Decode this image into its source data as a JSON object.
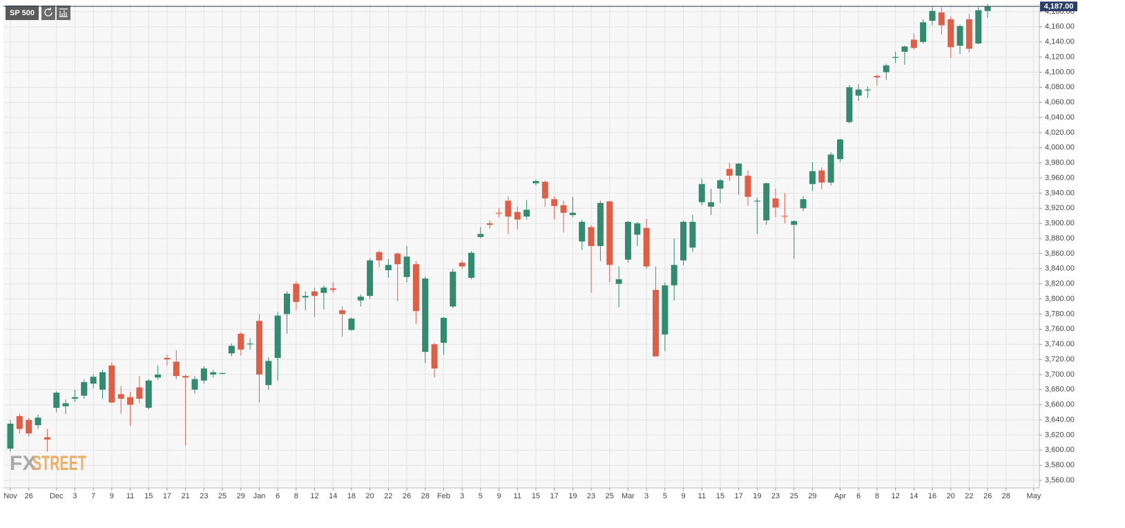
{
  "chart_data": {
    "type": "candlestick",
    "symbol": "SP 500",
    "watermark": [
      "FX",
      "STREET"
    ],
    "last_price": {
      "value": 4187,
      "label": "4,187.00"
    },
    "up_color": "#338a6e",
    "down_color": "#dd5f48",
    "grid": true,
    "categories": [
      "Nov",
      null,
      "26",
      null,
      null,
      "Dec",
      null,
      "3",
      null,
      "7",
      null,
      "9",
      null,
      "11",
      null,
      "15",
      null,
      "17",
      null,
      "21",
      null,
      "23",
      null,
      "25",
      null,
      "29",
      null,
      "Jan",
      null,
      "6",
      null,
      "8",
      null,
      "12",
      null,
      "14",
      null,
      "18",
      null,
      "20",
      null,
      "22",
      null,
      "26",
      null,
      "28",
      null,
      "Feb",
      null,
      "3",
      null,
      "5",
      null,
      "9",
      null,
      "11",
      null,
      "15",
      null,
      "17",
      null,
      "19",
      null,
      "23",
      null,
      "25",
      null,
      "Mar",
      null,
      "3",
      null,
      "5",
      null,
      "9",
      null,
      "11",
      null,
      "15",
      null,
      "17",
      null,
      "19",
      null,
      "23",
      null,
      "25",
      null,
      "29",
      null,
      null,
      "Apr",
      null,
      "6",
      null,
      "8",
      null,
      "12",
      null,
      "14",
      null,
      "16",
      null,
      "20",
      null,
      "22",
      null,
      "26",
      null,
      "28",
      null,
      null,
      "May"
    ],
    "open": [
      3602,
      3645,
      3640,
      3633,
      3617,
      3656,
      3658,
      3668,
      3672,
      3688,
      3680,
      3712,
      3674,
      3670,
      3683,
      3656,
      3696,
      3722,
      3717,
      3698,
      3680,
      3692,
      3700,
      3701,
      3728,
      3754,
      3740,
      3771,
      3686,
      3722,
      3780,
      3820,
      3802,
      3810,
      3808,
      3814,
      3785,
      3759,
      3798,
      3804,
      3862,
      3838,
      3860,
      3829,
      3846,
      3730,
      3740,
      3742,
      3790,
      3848,
      3828,
      3882,
      3900,
      3914,
      3930,
      3915,
      3909,
      3953,
      3955,
      3932,
      3924,
      3911,
      3876,
      3895,
      3870,
      3929,
      3820,
      3852,
      3885,
      3894,
      3812,
      3753,
      3818,
      3851,
      3868,
      3928,
      3922,
      3946,
      3972,
      3963,
      3963,
      3929,
      3904,
      3933,
      3910,
      3898,
      3920,
      3952,
      3970,
      3954,
      3985,
      4034,
      4069,
      4076,
      4095,
      4100,
      4120,
      4127,
      4143,
      4140,
      4168,
      4179,
      4170,
      4135,
      4170,
      4138,
      4181,
      null,
      null,
      null,
      null,
      null
    ],
    "high": [
      3640,
      3648,
      3643,
      3647,
      3628,
      3678,
      3667,
      3680,
      3694,
      3700,
      3706,
      3716,
      3685,
      3677,
      3698,
      3694,
      3712,
      3726,
      3732,
      3700,
      3698,
      3711,
      3706,
      3702,
      3741,
      3756,
      3748,
      3780,
      3723,
      3783,
      3810,
      3823,
      3810,
      3815,
      3818,
      3822,
      3790,
      3776,
      3806,
      3854,
      3864,
      3853,
      3862,
      3870,
      3850,
      3830,
      3742,
      3776,
      3840,
      3851,
      3863,
      3895,
      3904,
      3920,
      3936,
      3922,
      3931,
      3958,
      3957,
      3936,
      3930,
      3935,
      3905,
      3898,
      3930,
      3930,
      3843,
      3903,
      3902,
      3906,
      3843,
      3822,
      3880,
      3904,
      3911,
      3959,
      3946,
      3959,
      3980,
      3980,
      3970,
      3934,
      3954,
      3946,
      3940,
      3904,
      3936,
      3981,
      3974,
      3994,
      4012,
      4083,
      4084,
      4081,
      4097,
      4111,
      4127,
      4135,
      4151,
      4170,
      4186,
      4186,
      4174,
      4163,
      4177,
      4186,
      4190,
      null,
      null,
      null,
      null,
      null
    ],
    "low": [
      3598,
      3622,
      3618,
      3628,
      3598,
      3650,
      3648,
      3664,
      3668,
      3682,
      3668,
      3662,
      3648,
      3632,
      3662,
      3654,
      3693,
      3712,
      3694,
      3606,
      3675,
      3688,
      3696,
      3700,
      3724,
      3725,
      3733,
      3663,
      3680,
      3692,
      3754,
      3785,
      3785,
      3776,
      3786,
      3808,
      3750,
      3758,
      3790,
      3800,
      3842,
      3828,
      3797,
      3822,
      3767,
      3715,
      3696,
      3726,
      3788,
      3840,
      3826,
      3880,
      3893,
      3908,
      3886,
      3892,
      3905,
      3950,
      3922,
      3905,
      3888,
      3908,
      3865,
      3808,
      3850,
      3822,
      3789,
      3848,
      3870,
      3840,
      3724,
      3731,
      3798,
      3845,
      3862,
      3924,
      3911,
      3927,
      3956,
      3938,
      3923,
      3886,
      3898,
      3908,
      3900,
      3853,
      3916,
      3943,
      3945,
      3950,
      3981,
      4032,
      4062,
      4066,
      4082,
      4090,
      4112,
      4110,
      4130,
      4138,
      4162,
      4150,
      4119,
      4124,
      4126,
      4137,
      4172,
      null,
      null,
      null,
      null,
      null
    ],
    "close": [
      3635,
      3628,
      3622,
      3643,
      3614,
      3676,
      3662,
      3670,
      3690,
      3697,
      3703,
      3663,
      3668,
      3660,
      3668,
      3692,
      3700,
      3720,
      3698,
      3696,
      3694,
      3708,
      3703,
      3702,
      3738,
      3733,
      3741,
      3700,
      3718,
      3778,
      3807,
      3796,
      3804,
      3804,
      3815,
      3812,
      3780,
      3774,
      3803,
      3851,
      3851,
      3845,
      3846,
      3856,
      3784,
      3827,
      3708,
      3775,
      3836,
      3843,
      3861,
      3886,
      3898,
      3913,
      3909,
      3905,
      3918,
      3956,
      3933,
      3923,
      3914,
      3914,
      3902,
      3870,
      3927,
      3845,
      3826,
      3902,
      3900,
      3843,
      3724,
      3818,
      3845,
      3902,
      3902,
      3952,
      3928,
      3957,
      3963,
      3979,
      3935,
      3930,
      3953,
      3921,
      3909,
      3903,
      3932,
      3969,
      3954,
      3991,
      4011,
      4080,
      4077,
      4077,
      4093,
      4109,
      4120,
      4134,
      4132,
      4166,
      4181,
      4162,
      4133,
      4161,
      4131,
      4182,
      4187,
      null,
      null,
      null,
      null,
      null
    ],
    "ylim": [
      3550,
      4190
    ],
    "yticks": [
      {
        "value": 3560,
        "label": "3,560.00"
      },
      {
        "value": 3580,
        "label": "3,580.00"
      },
      {
        "value": 3600,
        "label": "3,600.00"
      },
      {
        "value": 3620,
        "label": "3,620.00"
      },
      {
        "value": 3640,
        "label": "3,640.00"
      },
      {
        "value": 3660,
        "label": "3,660.00"
      },
      {
        "value": 3680,
        "label": "3,680.00"
      },
      {
        "value": 3700,
        "label": "3,700.00"
      },
      {
        "value": 3720,
        "label": "3,720.00"
      },
      {
        "value": 3740,
        "label": "3,740.00"
      },
      {
        "value": 3760,
        "label": "3,760.00"
      },
      {
        "value": 3780,
        "label": "3,780.00"
      },
      {
        "value": 3800,
        "label": "3,800.00"
      },
      {
        "value": 3820,
        "label": "3,820.00"
      },
      {
        "value": 3840,
        "label": "3,840.00"
      },
      {
        "value": 3860,
        "label": "3,860.00"
      },
      {
        "value": 3880,
        "label": "3,880.00"
      },
      {
        "value": 3900,
        "label": "3,900.00"
      },
      {
        "value": 3920,
        "label": "3,920.00"
      },
      {
        "value": 3940,
        "label": "3,940.00"
      },
      {
        "value": 3960,
        "label": "3,960.00"
      },
      {
        "value": 3980,
        "label": "3,980.00"
      },
      {
        "value": 4000,
        "label": "4,000.00"
      },
      {
        "value": 4020,
        "label": "4,020.00"
      },
      {
        "value": 4040,
        "label": "4,040.00"
      },
      {
        "value": 4060,
        "label": "4,060.00"
      },
      {
        "value": 4080,
        "label": "4,080.00"
      },
      {
        "value": 4100,
        "label": "4,100.00"
      },
      {
        "value": 4120,
        "label": "4,120.00"
      },
      {
        "value": 4140,
        "label": "4,140.00"
      },
      {
        "value": 4160,
        "label": "4,160.00"
      },
      {
        "value": 4180,
        "label": "4,180.00"
      }
    ]
  }
}
